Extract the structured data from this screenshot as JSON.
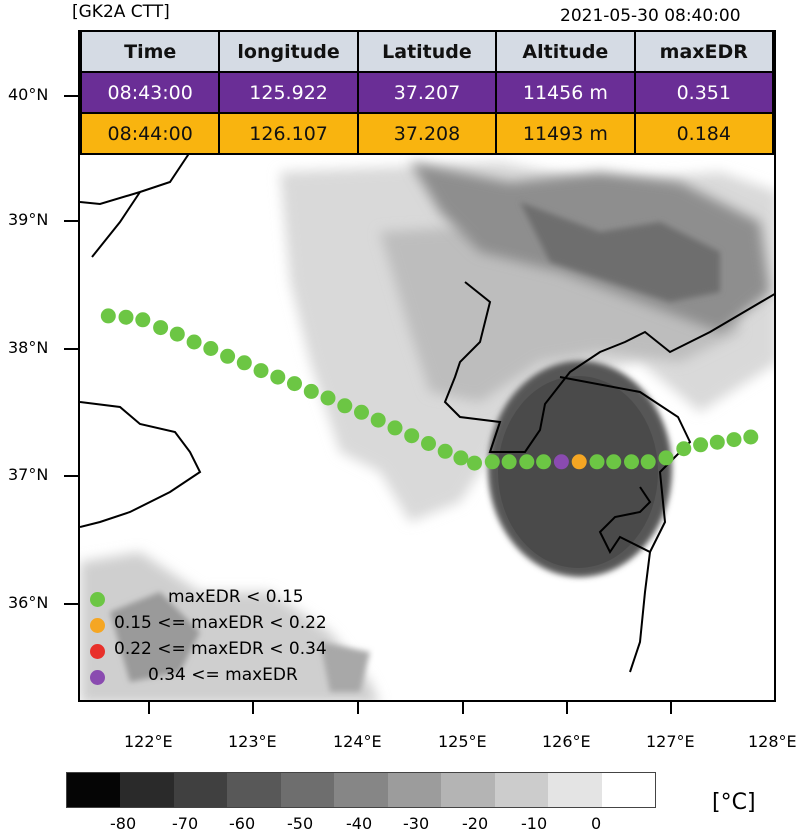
{
  "header": {
    "title": "[GK2A CTT]",
    "datetime": "2021-05-30 08:40:00"
  },
  "table": {
    "columns": [
      "Time",
      "longitude",
      "Latitude",
      "Altitude",
      "maxEDR"
    ],
    "rows": [
      {
        "cells": [
          "08:43:00",
          "125.922",
          "37.207",
          "11456 m",
          "0.351"
        ],
        "color": "#6a2e96"
      },
      {
        "cells": [
          "08:44:00",
          "126.107",
          "37.208",
          "11493 m",
          "0.184"
        ],
        "color": "#f9b40f"
      }
    ]
  },
  "axes": {
    "lat_labels": [
      "40°N",
      "39°N",
      "38°N",
      "37°N",
      "36°N"
    ],
    "lat_values": [
      40,
      39,
      38,
      37,
      36
    ],
    "lon_labels": [
      "122°E",
      "123°E",
      "124°E",
      "125°E",
      "126°E",
      "127°E",
      "128°E"
    ],
    "lon_values": [
      122,
      123,
      124,
      125,
      126,
      127,
      128
    ],
    "lon_range": [
      121.33,
      128.0
    ],
    "lat_range": [
      35.24,
      40.4
    ]
  },
  "legend": [
    {
      "label": "maxEDR < 0.15",
      "color": "#6cc644"
    },
    {
      "label": "0.15 <= maxEDR < 0.22",
      "color": "#f5a623"
    },
    {
      "label": "0.22 <= maxEDR < 0.34",
      "color": "#e8302a"
    },
    {
      "label": "0.34 <= maxEDR",
      "color": "#8a4bb0"
    }
  ],
  "flight_track": [
    {
      "lon": 121.6,
      "lat": 38.22,
      "cat": 0
    },
    {
      "lon": 121.77,
      "lat": 38.21,
      "cat": 0
    },
    {
      "lon": 121.93,
      "lat": 38.19,
      "cat": 0
    },
    {
      "lon": 122.1,
      "lat": 38.13,
      "cat": 0
    },
    {
      "lon": 122.26,
      "lat": 38.08,
      "cat": 0
    },
    {
      "lon": 122.42,
      "lat": 38.02,
      "cat": 0
    },
    {
      "lon": 122.58,
      "lat": 37.97,
      "cat": 0
    },
    {
      "lon": 122.74,
      "lat": 37.91,
      "cat": 0
    },
    {
      "lon": 122.9,
      "lat": 37.86,
      "cat": 0
    },
    {
      "lon": 123.06,
      "lat": 37.8,
      "cat": 0
    },
    {
      "lon": 123.22,
      "lat": 37.75,
      "cat": 0
    },
    {
      "lon": 123.38,
      "lat": 37.7,
      "cat": 0
    },
    {
      "lon": 123.54,
      "lat": 37.64,
      "cat": 0
    },
    {
      "lon": 123.7,
      "lat": 37.59,
      "cat": 0
    },
    {
      "lon": 123.86,
      "lat": 37.53,
      "cat": 0
    },
    {
      "lon": 124.02,
      "lat": 37.48,
      "cat": 0
    },
    {
      "lon": 124.18,
      "lat": 37.42,
      "cat": 0
    },
    {
      "lon": 124.34,
      "lat": 37.36,
      "cat": 0
    },
    {
      "lon": 124.5,
      "lat": 37.3,
      "cat": 0
    },
    {
      "lon": 124.66,
      "lat": 37.24,
      "cat": 0
    },
    {
      "lon": 124.82,
      "lat": 37.18,
      "cat": 0
    },
    {
      "lon": 124.97,
      "lat": 37.13,
      "cat": 0
    },
    {
      "lon": 125.1,
      "lat": 37.09,
      "cat": 0
    },
    {
      "lon": 125.27,
      "lat": 37.1,
      "cat": 0
    },
    {
      "lon": 125.43,
      "lat": 37.1,
      "cat": 0
    },
    {
      "lon": 125.6,
      "lat": 37.1,
      "cat": 0
    },
    {
      "lon": 125.76,
      "lat": 37.1,
      "cat": 0
    },
    {
      "lon": 125.93,
      "lat": 37.1,
      "cat": 3
    },
    {
      "lon": 126.1,
      "lat": 37.1,
      "cat": 1
    },
    {
      "lon": 126.27,
      "lat": 37.1,
      "cat": 0
    },
    {
      "lon": 126.43,
      "lat": 37.1,
      "cat": 0
    },
    {
      "lon": 126.6,
      "lat": 37.1,
      "cat": 0
    },
    {
      "lon": 126.76,
      "lat": 37.1,
      "cat": 0
    },
    {
      "lon": 126.93,
      "lat": 37.13,
      "cat": 0
    },
    {
      "lon": 127.1,
      "lat": 37.2,
      "cat": 0
    },
    {
      "lon": 127.26,
      "lat": 37.23,
      "cat": 0
    },
    {
      "lon": 127.42,
      "lat": 37.25,
      "cat": 0
    },
    {
      "lon": 127.58,
      "lat": 37.27,
      "cat": 0
    },
    {
      "lon": 127.74,
      "lat": 37.29,
      "cat": 0
    }
  ],
  "colorbar": {
    "colors": [
      "#050505",
      "#2a2a2a",
      "#404040",
      "#585858",
      "#6e6e6e",
      "#868686",
      "#9c9c9c",
      "#b4b4b4",
      "#cccccc",
      "#e4e4e4",
      "#ffffff"
    ],
    "labels": [
      "-80",
      "-70",
      "-60",
      "-50",
      "-40",
      "-30",
      "-20",
      "-10",
      "0"
    ],
    "unit": "[°C]"
  }
}
